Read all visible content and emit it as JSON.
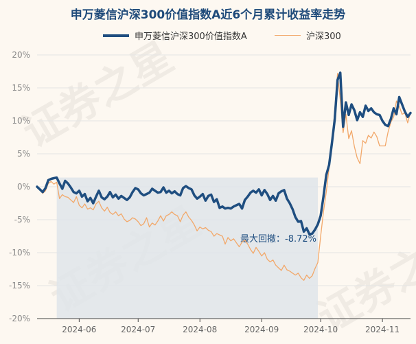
{
  "title": "申万菱信沪深300价值指数A近6个月累计收益率走势",
  "watermark": "证券之星",
  "legend": {
    "series1": "申万菱信沪深300价值指数A",
    "series2": "沪深300"
  },
  "colors": {
    "series1": "#1f4e80",
    "series2": "#f2a86a",
    "drawdown_fill": "#dfe5ea",
    "grid": "#e4e4e4",
    "annotation": "#1f4e80"
  },
  "chart_data": {
    "type": "line",
    "ylim": [
      -20,
      20
    ],
    "yticks": [
      20,
      15,
      10,
      5,
      0,
      -5,
      -10,
      -15,
      -20
    ],
    "ytick_labels": [
      "20%",
      "15%",
      "10%",
      "5%",
      "0%",
      "-5%",
      "-10%",
      "-15%",
      "-20%"
    ],
    "xtick_labels": [
      "2024-06",
      "2024-07",
      "2024-08",
      "2024-09",
      "2024-10",
      "2024-11"
    ],
    "xtick_index": [
      15,
      36,
      58,
      80,
      101,
      123
    ],
    "grid": "horizontal",
    "legend_position": "top",
    "series": [
      {
        "name": "申万菱信沪深300价值指数A",
        "values": [
          0,
          -0.4,
          -0.8,
          -0.2,
          1.0,
          1.2,
          1.3,
          1.4,
          0.5,
          -0.3,
          0.9,
          0.5,
          -0.1,
          -0.8,
          -1.0,
          -0.6,
          -1.5,
          -1.1,
          -2.2,
          -1.7,
          -2.5,
          -1.5,
          -0.6,
          -1.6,
          -1.9,
          -1.5,
          -0.8,
          -1.6,
          -1.2,
          -1.8,
          -1.4,
          -1.7,
          -2.0,
          -1.6,
          -0.8,
          -0.2,
          -0.4,
          -1.0,
          -1.3,
          -1.1,
          -0.9,
          -0.3,
          -0.6,
          -0.9,
          -0.8,
          -0.1,
          -0.9,
          -0.6,
          -1.0,
          -0.7,
          -1.1,
          -1.3,
          -0.2,
          0.1,
          -0.2,
          -0.4,
          -1.3,
          -1.8,
          -1.5,
          -1.1,
          -2.1,
          -1.4,
          -1.2,
          -2.3,
          -1.9,
          -3.2,
          -3.0,
          -3.3,
          -3.2,
          -3.3,
          -3.0,
          -2.8,
          -2.6,
          -3.3,
          -2.0,
          -1.5,
          -0.9,
          -0.6,
          -0.9,
          -0.4,
          -1.3,
          -0.5,
          -1.1,
          -2.0,
          -1.4,
          -2.1,
          -1.0,
          -0.7,
          -0.5,
          -1.8,
          -2.5,
          -3.4,
          -4.6,
          -5.3,
          -5.2,
          -6.8,
          -6.3,
          -7.2,
          -7.1,
          -6.5,
          -5.7,
          -4.4,
          -1.5,
          1.8,
          3.3,
          6.6,
          10.2,
          16.2,
          17.3,
          9.1,
          12.8,
          10.9,
          12.5,
          11.6,
          10.1,
          11.3,
          10.6,
          12.3,
          11.5,
          11.9,
          11.3,
          11.0,
          10.9,
          10.0,
          9.4,
          9.2,
          10.3,
          11.9,
          11.0,
          13.6,
          12.5,
          11.4,
          10.6,
          11.2
        ]
      },
      {
        "name": "沪深300",
        "values": [
          0,
          -0.5,
          -1.0,
          -0.6,
          0.5,
          0.8,
          0.4,
          0.7,
          -1.8,
          -1.2,
          -1.5,
          -1.6,
          -2.0,
          -2.4,
          -1.5,
          -2.8,
          -3.2,
          -2.6,
          -3.4,
          -3.2,
          -3.5,
          -2.6,
          -2.2,
          -3.2,
          -3.7,
          -3.1,
          -3.9,
          -4.2,
          -3.8,
          -4.4,
          -4.1,
          -4.9,
          -5.3,
          -5.1,
          -4.7,
          -4.9,
          -5.3,
          -5.9,
          -5.6,
          -4.7,
          -6.1,
          -5.5,
          -5.8,
          -5.2,
          -4.4,
          -5.2,
          -4.4,
          -4.2,
          -3.8,
          -4.2,
          -4.4,
          -5.3,
          -4.3,
          -3.8,
          -4.6,
          -5.1,
          -5.8,
          -6.7,
          -6.1,
          -6.4,
          -6.2,
          -6.6,
          -6.8,
          -7.5,
          -7.1,
          -7.3,
          -7.5,
          -8.7,
          -7.7,
          -8.2,
          -7.9,
          -8.5,
          -9.1,
          -8.4,
          -8.1,
          -8.7,
          -9.5,
          -10.1,
          -9.2,
          -9.8,
          -10.5,
          -10.0,
          -11.0,
          -11.4,
          -11.1,
          -11.9,
          -12.3,
          -12.7,
          -11.9,
          -12.6,
          -12.8,
          -13.1,
          -13.4,
          -13.1,
          -13.8,
          -14.2,
          -13.4,
          -13.9,
          -13.5,
          -12.4,
          -11.5,
          -7.5,
          -3.8,
          -0.8,
          2.9,
          6.4,
          11.6,
          17.2,
          13.2,
          8.2,
          11.0,
          7.3,
          8.5,
          6.1,
          4.4,
          3.5,
          7.0,
          6.6,
          7.8,
          7.4,
          8.3,
          7.6,
          6.2,
          6.2,
          6.2,
          8.3,
          9.8,
          10.6,
          13.0,
          12.2,
          11.0,
          11.2,
          9.7,
          11.3
        ]
      }
    ],
    "drawdown": {
      "start_index": 7,
      "end_index": 100,
      "label": "最大回撤：-8.72%"
    }
  }
}
